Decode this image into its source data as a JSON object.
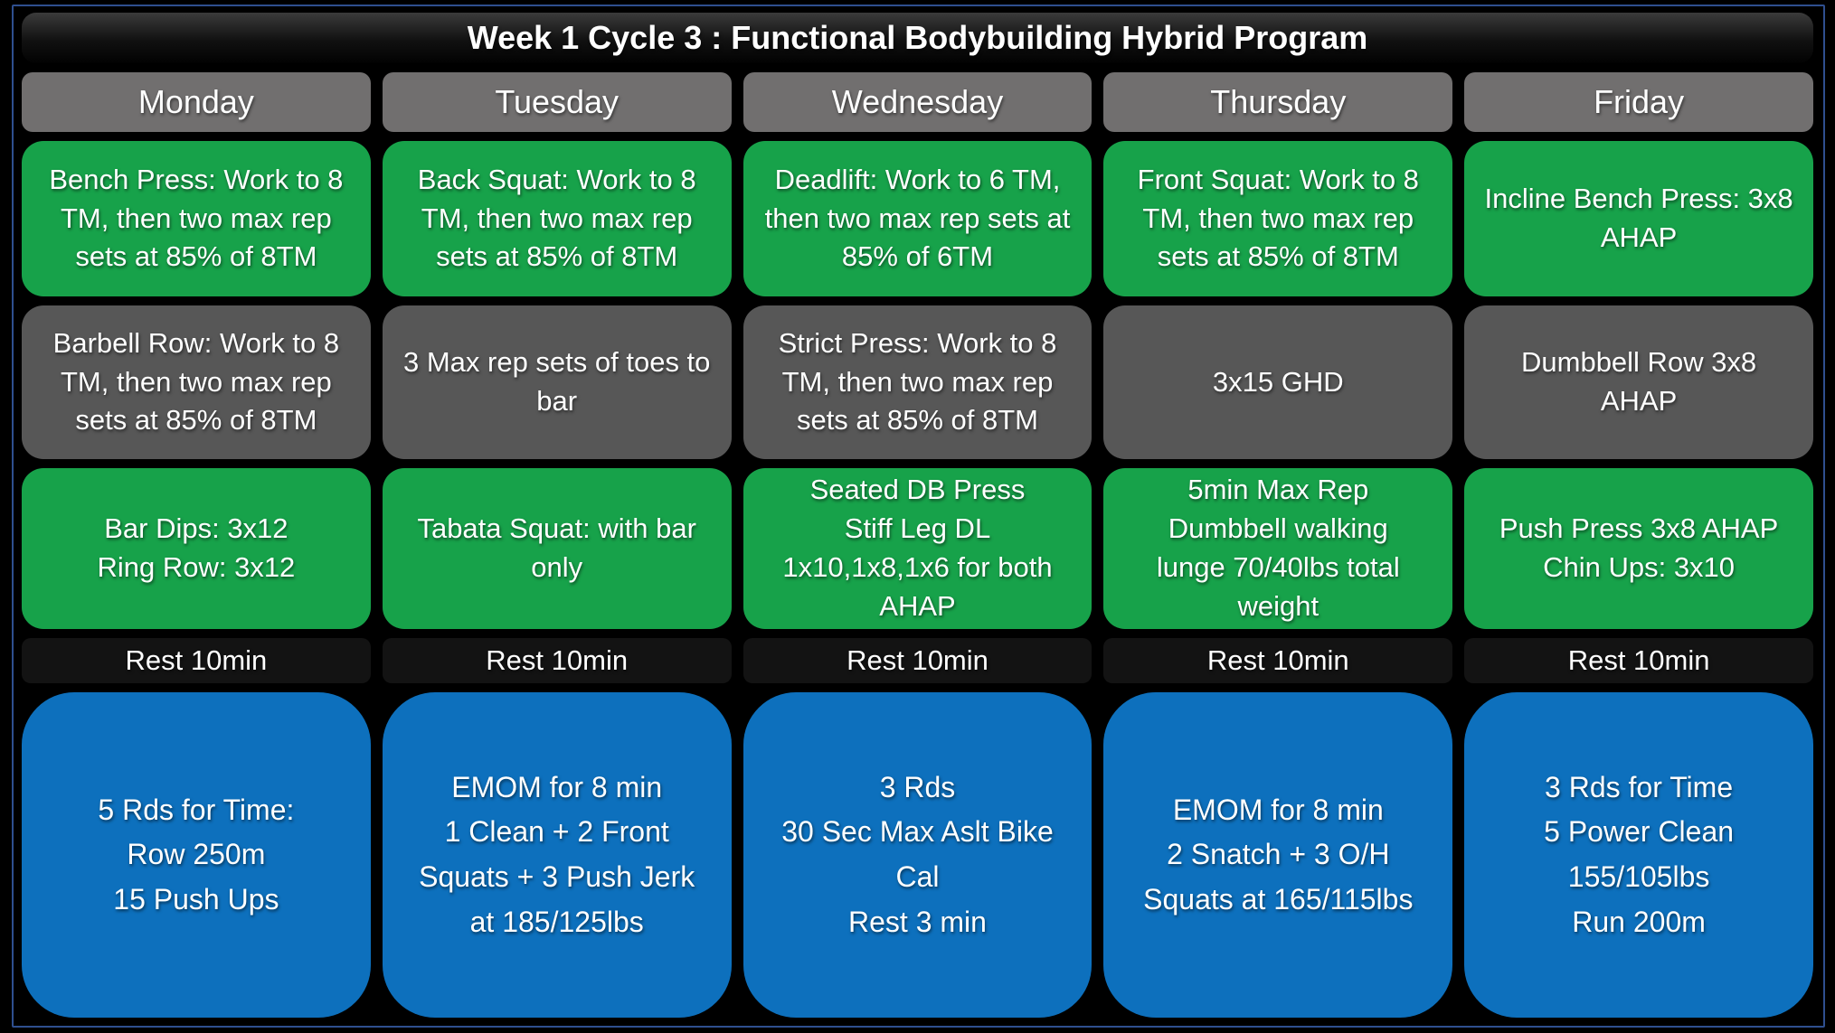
{
  "title": "Week 1 Cycle 3 : Functional Bodybuilding Hybrid Program",
  "colors": {
    "frame": "#2f4f8f",
    "dayhead": "#716f6f",
    "green": "#17a24a",
    "gray": "#575757",
    "restbg": "#131313",
    "blue": "#0d70bd"
  },
  "days": [
    {
      "name": "Monday",
      "main_lift": "Bench Press: Work to 8 TM, then two max rep sets at 85% of 8TM",
      "accessory": "Barbell Row: Work to 8 TM, then two max rep sets at 85% of 8TM",
      "skill": [
        "Bar Dips: 3x12",
        "Ring Row: 3x12"
      ],
      "rest": "Rest 10min",
      "conditioning": [
        "5 Rds for Time:",
        "Row 250m",
        "15 Push Ups"
      ]
    },
    {
      "name": "Tuesday",
      "main_lift": "Back Squat: Work to 8 TM, then two max rep sets at 85% of 8TM",
      "accessory": "3 Max rep sets of toes to bar",
      "skill": "Tabata Squat: with bar only",
      "rest": "Rest 10min",
      "conditioning": [
        "EMOM for 8 min",
        "1 Clean + 2 Front",
        "Squats + 3 Push Jerk",
        "at 185/125lbs"
      ]
    },
    {
      "name": "Wednesday",
      "main_lift": "Deadlift: Work to 6 TM, then two max rep sets at 85% of 6TM",
      "accessory": "Strict Press: Work to 8 TM, then two max rep sets at 85% of 8TM",
      "skill": [
        "Seated DB Press",
        "Stiff Leg DL",
        "1x10,1x8,1x6 for both",
        "AHAP"
      ],
      "rest": "Rest 10min",
      "conditioning": [
        "3 Rds",
        "30 Sec Max Aslt Bike",
        "Cal",
        "Rest 3 min"
      ]
    },
    {
      "name": "Thursday",
      "main_lift": "Front Squat: Work to 8 TM, then two max rep sets at 85% of 8TM",
      "accessory": "3x15 GHD",
      "skill": [
        "5min Max Rep",
        "Dumbbell walking",
        "lunge 70/40lbs total",
        "weight"
      ],
      "rest": "Rest 10min",
      "conditioning": [
        "EMOM for 8 min",
        "2 Snatch + 3 O/H",
        "Squats at 165/115lbs"
      ]
    },
    {
      "name": "Friday",
      "main_lift": "Incline Bench Press: 3x8 AHAP",
      "accessory": "Dumbbell Row 3x8 AHAP",
      "skill": [
        "Push Press 3x8 AHAP",
        "Chin Ups: 3x10"
      ],
      "rest": "Rest 10min",
      "conditioning": [
        "3 Rds for Time",
        "5 Power Clean",
        "155/105lbs",
        "Run 200m"
      ]
    }
  ]
}
